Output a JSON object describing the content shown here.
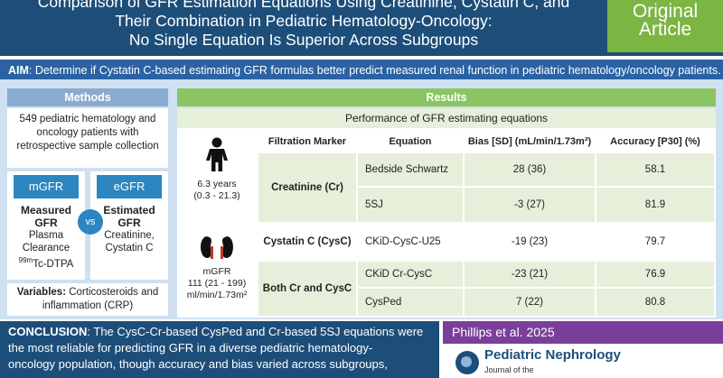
{
  "header": {
    "title_lines": [
      "Comparison of GFR Estimation Equations Using Creatinine, Cystatin C, and",
      "Their Combination in Pediatric Hematology-Oncology:",
      "No Single Equation Is Superior Across Subgroups"
    ],
    "badge_lines": [
      "Original",
      "Article"
    ]
  },
  "aim": {
    "label": "AIM",
    "text": ": Determine if Cystatin C-based estimating GFR formulas better predict measured renal function in pediatric hematology/oncology  patients."
  },
  "methods": {
    "heading": "Methods",
    "population": "549 pediatric hematology and oncology patients with retrospective sample collection",
    "mgfr": {
      "pill": "mGFR",
      "title_lines": [
        "Measured",
        "GFR"
      ],
      "text_lines": [
        "Plasma",
        "Clearance"
      ],
      "isotope_sup": "99m",
      "isotope": "Tc-DTPA"
    },
    "vs": "vs",
    "egfr": {
      "pill": "eGFR",
      "title_lines": [
        "Estimated",
        "GFR"
      ],
      "text_lines": [
        "Creatinine,",
        "Cystatin C"
      ]
    },
    "variables_label": "Variables:",
    "variables_text": " Corticosteroids and inflammation (CRP)"
  },
  "results": {
    "heading": "Results",
    "subheading": "Performance of GFR estimating equations",
    "age_lines": [
      "6.3 years",
      "(0.3 - 21.3)"
    ],
    "mgfr_lines": [
      "mGFR",
      "111 (21 - 199)",
      "ml/min/1.73m²"
    ],
    "columns": [
      "Filtration Marker",
      "Equation",
      "Bias [SD] (mL/min/1.73m²)",
      "Accuracy [P30] (%)"
    ],
    "rows": [
      {
        "marker": "Creatinine (Cr)",
        "equation": "Bedside Schwartz",
        "bias": "28 (36)",
        "accuracy": "58.1"
      },
      {
        "marker": "",
        "equation": "5SJ",
        "bias": "-3 (27)",
        "accuracy": "81.9"
      },
      {
        "marker": "Cystatin C (CysC)",
        "equation": "CKiD-CysC-U25",
        "bias": "-19 (23)",
        "accuracy": "79.7"
      },
      {
        "marker": "Both Cr and CysC",
        "equation": "CKiD Cr-CysC",
        "bias": "-23 (21)",
        "accuracy": "76.9"
      },
      {
        "marker": "",
        "equation": "CysPed",
        "bias": "7 (22)",
        "accuracy": "80.8"
      }
    ]
  },
  "conclusion": {
    "label": "CONCLUSION",
    "lines": [
      ": The CysC-Cr-based CysPed and Cr-based 5SJ equations were",
      "the most reliable for predicting GFR in a diverse pediatric hematology-",
      "oncology population, though accuracy and bias varied across subgroups,"
    ]
  },
  "citation": "Phillips et al. 2025",
  "journal": {
    "name": "Pediatric Nephrology",
    "subtitle": "Journal of the"
  },
  "colors": {
    "header": "#1d4e7a",
    "badge": "#7bb542",
    "aim": "#2a62a3",
    "results_green": "#8bc561",
    "citation": "#7a3f9b"
  }
}
